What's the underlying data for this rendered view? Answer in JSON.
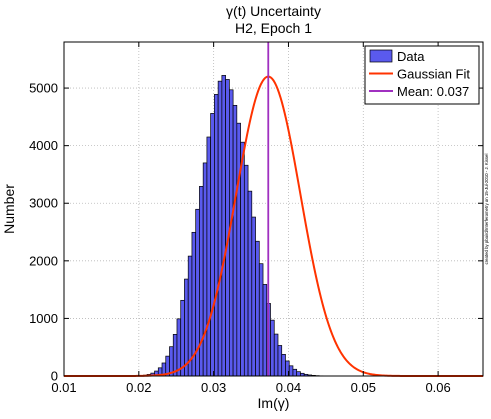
{
  "chart_data": {
    "type": "bar",
    "title": "γ(t) Uncertainty",
    "subtitle": "H2, Epoch 1",
    "xlabel": "Im(γ)",
    "ylabel": "Number",
    "xlim": [
      0.01,
      0.066
    ],
    "ylim": [
      0,
      5800
    ],
    "grid": true,
    "legend_position": "top-right",
    "x_ticks": [
      0.01,
      0.02,
      0.03,
      0.04,
      0.05,
      0.06
    ],
    "x_tick_labels": [
      "0.01",
      "0.02",
      "0.03",
      "0.04",
      "0.05",
      "0.06"
    ],
    "y_ticks": [
      0,
      1000,
      2000,
      3000,
      4000,
      5000
    ],
    "y_tick_labels": [
      "0",
      "1000",
      "2000",
      "3000",
      "4000",
      "5000"
    ],
    "histogram": {
      "bin_start": 0.0136,
      "bin_width": 0.0005,
      "counts": [
        0,
        0,
        0,
        0,
        0,
        0,
        0,
        0,
        0,
        0,
        1,
        2,
        4,
        8,
        15,
        28,
        50,
        86,
        142,
        226,
        345,
        509,
        723,
        992,
        1314,
        1683,
        2082,
        2495,
        2895,
        3293,
        3700,
        4150,
        4560,
        4890,
        5120,
        5220,
        5150,
        4970,
        4700,
        4390,
        4060,
        3660,
        3210,
        2760,
        2340,
        1950,
        1590,
        1260,
        970,
        728,
        530,
        376,
        261,
        177,
        117,
        75,
        47,
        29,
        18,
        11,
        6,
        3,
        2,
        1,
        0
      ]
    },
    "series": [
      {
        "name": "Data",
        "color": "#5a5aee",
        "kind": "histogram"
      },
      {
        "name": "Gaussian Fit",
        "color": "#ff3300",
        "kind": "line"
      },
      {
        "name": "Mean: 0.037",
        "color": "#a030c0",
        "kind": "vline",
        "x": 0.0373
      }
    ],
    "fit": {
      "amplitude": 5200,
      "mean": 0.0373,
      "sigma": 0.0043
    },
    "side_note": "created by pbaird/Interferometry on 15-Jul-2010 - J. Kissel"
  }
}
